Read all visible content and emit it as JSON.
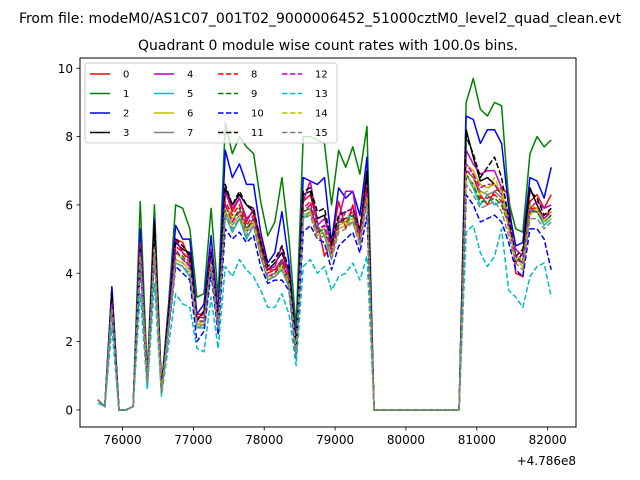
{
  "figure": {
    "suptitle": "From file: modeM0/AS1C07_001T02_9000006452_51000cztM0_level2_quad_clean.evt",
    "title": "Quadrant 0 module wise count rates with 100.0s bins.",
    "x_offset_label": "+4.786e8"
  },
  "chart_data": {
    "type": "line",
    "title": "Quadrant 0 module wise count rates with 100.0s bins.",
    "xlabel": "",
    "ylabel": "",
    "x_offset": 478600000,
    "xlim": [
      75400,
      82400
    ],
    "ylim": [
      -0.5,
      10.3
    ],
    "x_ticks": [
      76000,
      77000,
      78000,
      79000,
      80000,
      81000,
      82000
    ],
    "x_tick_labels": [
      "76000",
      "77000",
      "78000",
      "79000",
      "80000",
      "81000",
      "82000"
    ],
    "y_ticks": [
      0,
      2,
      4,
      6,
      8,
      10
    ],
    "y_tick_labels": [
      "0",
      "2",
      "4",
      "6",
      "8",
      "10"
    ],
    "legend_position": "upper-left",
    "x": [
      75650,
      75750,
      75850,
      75950,
      76050,
      76150,
      76250,
      76350,
      76450,
      76550,
      76650,
      76750,
      76850,
      76950,
      77050,
      77150,
      77250,
      77350,
      77450,
      77550,
      77650,
      77750,
      77850,
      77950,
      78050,
      78150,
      78250,
      78350,
      78450,
      78550,
      78650,
      78750,
      78850,
      78950,
      79050,
      79150,
      79250,
      79350,
      79450,
      79550,
      79650,
      79750,
      79850,
      79950,
      80050,
      80150,
      80250,
      80350,
      80450,
      80550,
      80650,
      80750,
      80850,
      80950,
      81050,
      81150,
      81250,
      81350,
      81450,
      81550,
      81650,
      81750,
      81850,
      81950,
      82050
    ],
    "series": [
      {
        "name": "0",
        "color": "#ff0000",
        "dash": "solid",
        "values": [
          0.3,
          0.1,
          3.3,
          0.0,
          0.0,
          0.1,
          5.0,
          1.0,
          5.2,
          0.6,
          2.7,
          5.0,
          4.9,
          4.4,
          2.8,
          2.8,
          4.6,
          2.6,
          6.4,
          5.8,
          6.2,
          5.6,
          5.8,
          5.0,
          4.1,
          4.1,
          4.4,
          4.0,
          1.8,
          6.1,
          6.3,
          5.5,
          4.5,
          4.9,
          6.1,
          5.3,
          6.0,
          5.1,
          6.9,
          0.0,
          0.0,
          0.0,
          0.0,
          0.0,
          0.0,
          0.0,
          0.0,
          0.0,
          0.0,
          0.0,
          0.0,
          0.0,
          7.0,
          6.8,
          6.3,
          6.0,
          6.4,
          6.5,
          6.3,
          4.0,
          3.9,
          6.1,
          6.3,
          5.9,
          6.3
        ]
      },
      {
        "name": "1",
        "color": "#008000",
        "dash": "solid",
        "values": [
          0.3,
          0.1,
          3.6,
          0.0,
          0.0,
          0.1,
          6.1,
          1.0,
          6.0,
          0.7,
          3.1,
          6.0,
          5.9,
          5.3,
          3.3,
          3.4,
          5.9,
          3.3,
          8.4,
          7.5,
          8.0,
          7.7,
          7.5,
          6.1,
          5.1,
          5.5,
          6.8,
          5.0,
          2.4,
          8.0,
          8.0,
          7.9,
          7.8,
          6.0,
          7.6,
          7.1,
          7.7,
          6.9,
          8.3,
          0.0,
          0.0,
          0.0,
          0.0,
          0.0,
          0.0,
          0.0,
          0.0,
          0.0,
          0.0,
          0.0,
          0.0,
          0.0,
          9.0,
          9.7,
          8.8,
          8.6,
          9.0,
          8.9,
          6.1,
          5.3,
          5.2,
          7.5,
          8.0,
          7.7,
          7.9
        ]
      },
      {
        "name": "2",
        "color": "#0000ff",
        "dash": "solid",
        "values": [
          0.3,
          0.1,
          3.6,
          0.0,
          0.0,
          0.1,
          5.3,
          0.8,
          5.6,
          0.6,
          2.9,
          5.4,
          5.0,
          5.0,
          2.8,
          3.1,
          5.1,
          2.8,
          7.6,
          6.8,
          7.2,
          6.6,
          6.6,
          5.2,
          4.3,
          4.6,
          5.8,
          4.3,
          2.0,
          6.8,
          6.7,
          6.6,
          6.8,
          4.9,
          6.5,
          6.2,
          6.4,
          5.7,
          7.4,
          0.0,
          0.0,
          0.0,
          0.0,
          0.0,
          0.0,
          0.0,
          0.0,
          0.0,
          0.0,
          0.0,
          0.0,
          0.0,
          8.6,
          8.5,
          7.8,
          8.2,
          8.2,
          7.8,
          5.9,
          4.8,
          4.9,
          6.8,
          6.7,
          6.2,
          7.1
        ]
      },
      {
        "name": "3",
        "color": "#000000",
        "dash": "solid",
        "values": [
          0.3,
          0.1,
          3.4,
          0.0,
          0.0,
          0.1,
          4.8,
          0.8,
          5.5,
          0.6,
          2.7,
          4.9,
          4.7,
          4.6,
          2.6,
          2.9,
          4.6,
          2.6,
          6.5,
          6.0,
          6.3,
          6.0,
          5.8,
          4.8,
          4.1,
          4.3,
          4.6,
          4.0,
          1.7,
          6.3,
          6.4,
          5.6,
          5.7,
          4.8,
          5.5,
          5.6,
          5.7,
          5.2,
          7.0,
          0.0,
          0.0,
          0.0,
          0.0,
          0.0,
          0.0,
          0.0,
          0.0,
          0.0,
          0.0,
          0.0,
          0.0,
          0.0,
          8.2,
          7.4,
          6.7,
          6.8,
          6.6,
          6.3,
          5.7,
          4.3,
          4.6,
          6.5,
          6.0,
          5.6,
          5.8
        ]
      },
      {
        "name": "4",
        "color": "#bf00bf",
        "dash": "solid",
        "values": [
          0.3,
          0.1,
          3.2,
          0.0,
          0.0,
          0.1,
          4.9,
          0.9,
          5.1,
          0.6,
          2.6,
          5.0,
          4.6,
          4.4,
          2.7,
          2.8,
          4.7,
          2.6,
          6.4,
          5.9,
          6.2,
          5.5,
          5.9,
          4.8,
          4.1,
          4.2,
          4.8,
          3.9,
          1.8,
          6.1,
          6.7,
          5.4,
          5.6,
          4.9,
          5.6,
          6.4,
          6.4,
          5.1,
          6.6,
          0.0,
          0.0,
          0.0,
          0.0,
          0.0,
          0.0,
          0.0,
          0.0,
          0.0,
          0.0,
          0.0,
          0.0,
          0.0,
          7.6,
          7.2,
          6.9,
          7.0,
          7.0,
          6.5,
          5.3,
          4.7,
          4.5,
          5.9,
          6.1,
          5.9,
          6.0
        ]
      },
      {
        "name": "5",
        "color": "#00bfbf",
        "dash": "solid",
        "values": [
          0.3,
          0.1,
          3.0,
          0.0,
          0.0,
          0.1,
          4.5,
          0.7,
          4.6,
          0.5,
          2.4,
          4.3,
          4.2,
          3.9,
          2.4,
          2.4,
          4.1,
          2.4,
          5.7,
          5.2,
          5.6,
          5.0,
          5.4,
          4.5,
          3.8,
          3.9,
          4.1,
          3.6,
          1.6,
          5.6,
          5.8,
          5.4,
          5.1,
          4.4,
          5.6,
          5.6,
          5.7,
          5.1,
          6.1,
          0.0,
          0.0,
          0.0,
          0.0,
          0.0,
          0.0,
          0.0,
          0.0,
          0.0,
          0.0,
          0.0,
          0.0,
          0.0,
          6.9,
          6.5,
          6.0,
          6.3,
          6.0,
          6.1,
          5.6,
          4.4,
          4.3,
          5.8,
          5.8,
          5.4,
          5.6
        ]
      },
      {
        "name": "6",
        "color": "#bfbf00",
        "dash": "solid",
        "values": [
          0.3,
          0.1,
          3.1,
          0.0,
          0.0,
          0.1,
          4.6,
          0.8,
          4.8,
          0.5,
          2.5,
          4.6,
          4.4,
          4.2,
          2.5,
          2.6,
          4.3,
          2.5,
          6.0,
          5.6,
          5.8,
          5.3,
          5.6,
          4.6,
          3.9,
          4.0,
          4.3,
          3.7,
          1.7,
          5.8,
          5.9,
          5.2,
          5.3,
          4.6,
          5.4,
          5.5,
          5.6,
          5.0,
          6.3,
          0.0,
          0.0,
          0.0,
          0.0,
          0.0,
          0.0,
          0.0,
          0.0,
          0.0,
          0.0,
          0.0,
          0.0,
          0.0,
          7.2,
          7.0,
          6.6,
          6.5,
          6.6,
          6.4,
          5.6,
          4.5,
          4.4,
          6.0,
          5.9,
          5.6,
          5.8
        ]
      },
      {
        "name": "7",
        "color": "#808080",
        "dash": "solid",
        "values": [
          0.3,
          0.1,
          3.1,
          0.0,
          0.0,
          0.1,
          4.5,
          0.8,
          4.7,
          0.5,
          2.4,
          4.4,
          4.3,
          4.1,
          2.5,
          2.5,
          4.2,
          2.4,
          5.8,
          5.4,
          5.7,
          5.2,
          5.5,
          4.5,
          3.9,
          3.9,
          4.2,
          3.7,
          1.6,
          5.7,
          5.8,
          5.1,
          5.2,
          4.5,
          5.3,
          5.4,
          5.5,
          4.9,
          6.2,
          0.0,
          0.0,
          0.0,
          0.0,
          0.0,
          0.0,
          0.0,
          0.0,
          0.0,
          0.0,
          0.0,
          0.0,
          0.0,
          7.0,
          6.8,
          6.4,
          6.3,
          6.4,
          6.2,
          5.5,
          4.4,
          4.3,
          5.9,
          5.8,
          5.5,
          5.7
        ]
      },
      {
        "name": "8",
        "color": "#ff0000",
        "dash": "dashed",
        "values": [
          0.3,
          0.1,
          3.2,
          0.0,
          0.0,
          0.1,
          4.8,
          0.9,
          5.0,
          0.6,
          2.6,
          4.8,
          4.6,
          4.3,
          2.7,
          2.7,
          4.5,
          2.5,
          6.1,
          5.7,
          6.0,
          5.4,
          5.7,
          4.8,
          4.0,
          4.1,
          4.4,
          3.8,
          1.7,
          5.9,
          6.1,
          5.3,
          5.4,
          4.7,
          5.6,
          5.6,
          5.8,
          5.1,
          6.5,
          0.0,
          0.0,
          0.0,
          0.0,
          0.0,
          0.0,
          0.0,
          0.0,
          0.0,
          0.0,
          0.0,
          0.0,
          0.0,
          7.0,
          6.9,
          6.2,
          6.2,
          6.3,
          6.1,
          5.4,
          4.4,
          4.3,
          5.9,
          5.9,
          5.6,
          5.9
        ]
      },
      {
        "name": "9",
        "color": "#008000",
        "dash": "dashed",
        "values": [
          0.3,
          0.1,
          3.1,
          0.0,
          0.0,
          0.1,
          4.6,
          0.8,
          4.9,
          0.5,
          2.5,
          4.6,
          4.5,
          4.2,
          2.6,
          2.6,
          4.4,
          2.5,
          6.0,
          5.5,
          5.9,
          5.3,
          5.6,
          4.7,
          3.9,
          4.0,
          4.3,
          3.7,
          1.7,
          5.8,
          5.9,
          5.2,
          5.3,
          4.6,
          5.5,
          5.5,
          5.7,
          5.0,
          6.3,
          0.0,
          0.0,
          0.0,
          0.0,
          0.0,
          0.0,
          0.0,
          0.0,
          0.0,
          0.0,
          0.0,
          0.0,
          0.0,
          6.9,
          6.6,
          6.1,
          6.1,
          6.2,
          6.0,
          5.4,
          4.4,
          4.3,
          5.8,
          5.8,
          5.5,
          5.7
        ]
      },
      {
        "name": "10",
        "color": "#0000ff",
        "dash": "dashed",
        "values": [
          0.3,
          0.1,
          2.9,
          0.0,
          0.0,
          0.1,
          4.2,
          0.8,
          4.5,
          0.5,
          2.3,
          4.2,
          4.0,
          3.8,
          2.0,
          2.3,
          4.0,
          2.2,
          5.3,
          5.0,
          5.2,
          4.9,
          5.1,
          4.2,
          3.7,
          3.8,
          3.8,
          3.5,
          1.5,
          5.2,
          5.4,
          5.0,
          4.9,
          4.1,
          4.8,
          5.0,
          5.2,
          4.6,
          5.7,
          0.0,
          0.0,
          0.0,
          0.0,
          0.0,
          0.0,
          0.0,
          0.0,
          0.0,
          0.0,
          0.0,
          0.0,
          0.0,
          6.3,
          6.0,
          5.5,
          5.6,
          5.7,
          5.5,
          4.9,
          4.1,
          3.9,
          5.3,
          5.3,
          5.0,
          4.1
        ]
      },
      {
        "name": "11",
        "color": "#000000",
        "dash": "dashed",
        "values": [
          0.3,
          0.1,
          3.3,
          0.0,
          0.0,
          0.1,
          4.7,
          0.8,
          5.3,
          0.6,
          2.7,
          5.0,
          4.8,
          4.5,
          2.6,
          2.9,
          4.6,
          2.6,
          6.6,
          6.0,
          6.4,
          6.0,
          5.9,
          4.9,
          4.2,
          4.4,
          4.8,
          4.1,
          1.8,
          6.4,
          6.5,
          5.8,
          5.9,
          4.9,
          5.7,
          5.8,
          5.9,
          5.3,
          7.0,
          0.0,
          0.0,
          0.0,
          0.0,
          0.0,
          0.0,
          0.0,
          0.0,
          0.0,
          0.0,
          0.0,
          0.0,
          0.0,
          8.0,
          7.5,
          6.8,
          7.1,
          7.4,
          6.8,
          5.6,
          4.5,
          4.7,
          6.4,
          6.2,
          5.7,
          5.9
        ]
      },
      {
        "name": "12",
        "color": "#bf00bf",
        "dash": "dashed",
        "values": [
          0.3,
          0.1,
          3.1,
          0.0,
          0.0,
          0.1,
          4.6,
          0.8,
          4.8,
          0.5,
          2.5,
          4.7,
          4.4,
          4.2,
          2.6,
          2.6,
          4.4,
          2.5,
          6.0,
          5.5,
          5.8,
          5.2,
          5.6,
          4.6,
          3.9,
          4.0,
          4.4,
          3.7,
          1.7,
          5.8,
          6.0,
          5.2,
          5.4,
          4.6,
          5.4,
          5.8,
          5.9,
          5.0,
          6.3,
          0.0,
          0.0,
          0.0,
          0.0,
          0.0,
          0.0,
          0.0,
          0.0,
          0.0,
          0.0,
          0.0,
          0.0,
          0.0,
          7.2,
          6.9,
          6.5,
          6.6,
          6.6,
          6.3,
          5.4,
          4.5,
          4.3,
          5.8,
          5.9,
          5.6,
          5.8
        ]
      },
      {
        "name": "13",
        "color": "#00bfbf",
        "dash": "dashed",
        "values": [
          0.2,
          0.1,
          2.4,
          0.0,
          0.0,
          0.1,
          3.4,
          0.6,
          3.7,
          0.4,
          1.9,
          3.4,
          3.1,
          3.0,
          1.8,
          1.7,
          3.3,
          1.8,
          4.2,
          3.9,
          4.4,
          4.1,
          3.9,
          3.5,
          3.0,
          3.0,
          3.4,
          2.8,
          1.3,
          4.2,
          4.4,
          4.0,
          4.2,
          3.5,
          3.9,
          4.0,
          4.3,
          3.8,
          4.5,
          0.0,
          0.0,
          0.0,
          0.0,
          0.0,
          0.0,
          0.0,
          0.0,
          0.0,
          0.0,
          0.0,
          0.0,
          0.0,
          5.2,
          5.4,
          4.6,
          4.2,
          4.5,
          5.3,
          3.5,
          3.3,
          3.0,
          3.9,
          4.2,
          4.3,
          3.3
        ]
      },
      {
        "name": "14",
        "color": "#bfbf00",
        "dash": "dashed",
        "values": [
          0.3,
          0.1,
          3.0,
          0.0,
          0.0,
          0.1,
          4.5,
          0.8,
          4.7,
          0.5,
          2.4,
          4.4,
          4.3,
          4.1,
          2.5,
          2.5,
          4.3,
          2.4,
          5.9,
          5.4,
          5.7,
          5.2,
          5.5,
          4.6,
          3.9,
          3.9,
          4.2,
          3.7,
          1.7,
          5.7,
          5.8,
          5.1,
          5.2,
          4.5,
          5.3,
          5.4,
          5.6,
          4.9,
          6.2,
          0.0,
          0.0,
          0.0,
          0.0,
          0.0,
          0.0,
          0.0,
          0.0,
          0.0,
          0.0,
          0.0,
          0.0,
          0.0,
          6.9,
          6.6,
          6.3,
          6.4,
          6.8,
          6.3,
          5.3,
          4.4,
          4.2,
          5.7,
          5.9,
          5.5,
          5.6
        ]
      },
      {
        "name": "15",
        "color": "#808080",
        "dash": "dashed",
        "values": [
          0.3,
          0.1,
          3.0,
          0.0,
          0.0,
          0.1,
          4.4,
          0.8,
          4.6,
          0.5,
          2.4,
          4.3,
          4.2,
          4.0,
          2.4,
          2.5,
          4.2,
          2.4,
          5.7,
          5.3,
          5.6,
          5.1,
          5.4,
          4.5,
          3.8,
          3.9,
          4.1,
          3.6,
          1.6,
          5.6,
          5.7,
          5.0,
          5.1,
          4.4,
          5.2,
          5.3,
          5.5,
          4.8,
          6.1,
          0.0,
          0.0,
          0.0,
          0.0,
          0.0,
          0.0,
          0.0,
          0.0,
          0.0,
          0.0,
          0.0,
          0.0,
          0.0,
          6.6,
          6.3,
          5.9,
          6.0,
          6.1,
          5.8,
          5.1,
          4.3,
          4.1,
          5.6,
          5.6,
          5.3,
          5.5
        ]
      }
    ]
  }
}
